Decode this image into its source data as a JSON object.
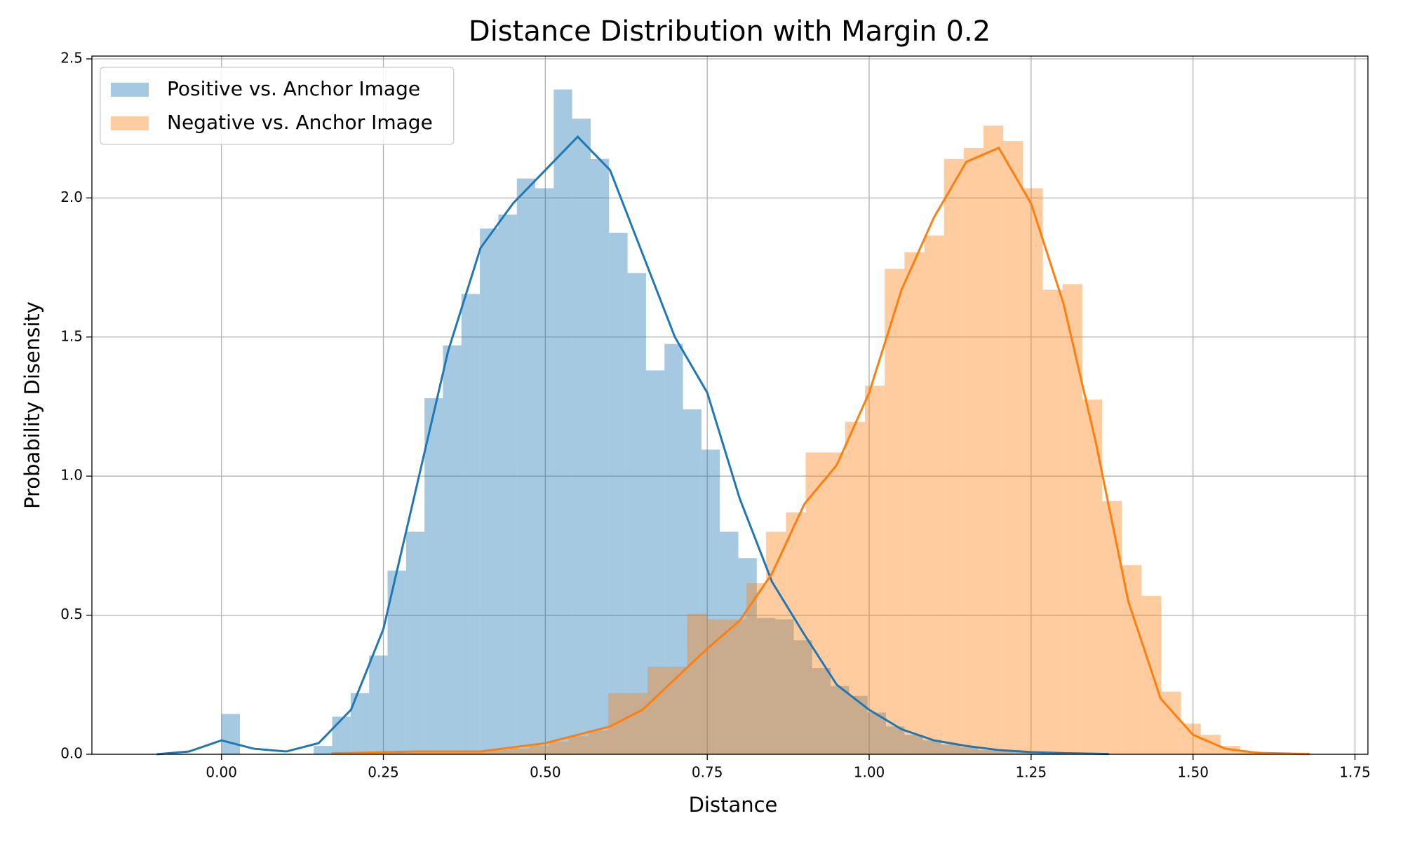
{
  "chart_data": {
    "type": "histogram",
    "title": "Distance Distribution with Margin 0.2",
    "xlabel": "Distance",
    "ylabel": "Probability Disensity",
    "xlim": [
      -0.2,
      1.77
    ],
    "ylim": [
      0,
      2.51
    ],
    "xticks": [
      {
        "value": 0,
        "label": "0.00"
      },
      {
        "value": 0.25,
        "label": "0.25"
      },
      {
        "value": 0.5,
        "label": "0.50"
      },
      {
        "value": 0.75,
        "label": "0.75"
      },
      {
        "value": 1,
        "label": "1.00"
      },
      {
        "value": 1.25,
        "label": "1.25"
      },
      {
        "value": 1.5,
        "label": "1.50"
      },
      {
        "value": 1.75,
        "label": "1.75"
      }
    ],
    "yticks": [
      {
        "value": 0,
        "label": "0.0"
      },
      0.5,
      {
        "value": 1,
        "label": "1.0"
      },
      1.5,
      {
        "value": 2,
        "label": "2.0"
      },
      2.5
    ],
    "grid": true,
    "legend": "upper left",
    "series": [
      {
        "name": "Positive vs. Anchor Image",
        "color": "#1f77b4",
        "bins": [
          0,
          0.0285,
          0.057,
          0.0855,
          0.114,
          0.1425,
          0.171,
          0.1995,
          0.228,
          0.2565,
          0.285,
          0.3135,
          0.342,
          0.3705,
          0.399,
          0.4275,
          0.456,
          0.4845,
          0.513,
          0.5415,
          0.57,
          0.5985,
          0.627,
          0.6555,
          0.684,
          0.7125,
          0.741,
          0.7695,
          0.798,
          0.8265,
          0.855,
          0.8835,
          0.912,
          0.9405,
          0.969,
          0.9975,
          1.026,
          1.0545,
          1.083,
          1.1115,
          1.14,
          1.1685,
          1.197,
          1.2255,
          1.254,
          1.2825,
          1.311,
          1.3395,
          1.368
        ],
        "values": [
          0.145,
          0,
          0,
          0,
          0,
          0.03,
          0.135,
          0.22,
          0.355,
          0.66,
          0.8,
          1.28,
          1.47,
          1.655,
          1.89,
          1.94,
          2.07,
          2.035,
          2.39,
          2.285,
          2.14,
          1.875,
          1.73,
          1.38,
          1.475,
          1.24,
          1.095,
          0.8,
          0.705,
          0.49,
          0.485,
          0.41,
          0.31,
          0.245,
          0.21,
          0.15,
          0.1,
          0.07,
          0.05,
          0.035,
          0.025,
          0.015,
          0.01,
          0.008,
          0.005,
          0.003,
          0.002,
          0.002
        ],
        "kde_x": [
          -0.1,
          -0.05,
          0,
          0.05,
          0.1,
          0.15,
          0.2,
          0.25,
          0.3,
          0.35,
          0.4,
          0.45,
          0.5,
          0.55,
          0.6,
          0.65,
          0.7,
          0.75,
          0.8,
          0.85,
          0.9,
          0.95,
          1.0,
          1.05,
          1.1,
          1.15,
          1.2,
          1.25,
          1.3,
          1.37
        ],
        "kde_y": [
          0.0,
          0.01,
          0.05,
          0.02,
          0.01,
          0.04,
          0.16,
          0.45,
          0.95,
          1.45,
          1.82,
          1.98,
          2.1,
          2.22,
          2.1,
          1.8,
          1.5,
          1.3,
          0.92,
          0.62,
          0.43,
          0.25,
          0.16,
          0.09,
          0.05,
          0.03,
          0.015,
          0.008,
          0.004,
          0.001
        ]
      },
      {
        "name": "Negative vs. Anchor Image",
        "color": "#ff7f0e",
        "bins": [
          0.17,
          0.2005,
          0.231,
          0.2615,
          0.292,
          0.3225,
          0.353,
          0.3835,
          0.414,
          0.4445,
          0.475,
          0.5055,
          0.536,
          0.5665,
          0.597,
          0.6275,
          0.658,
          0.6885,
          0.719,
          0.7495,
          0.78,
          0.8105,
          0.841,
          0.8715,
          0.902,
          0.9325,
          0.963,
          0.9935,
          1.024,
          1.0545,
          1.085,
          1.1155,
          1.146,
          1.1765,
          1.207,
          1.2375,
          1.268,
          1.2985,
          1.329,
          1.3595,
          1.39,
          1.4205,
          1.451,
          1.4815,
          1.512,
          1.5425,
          1.573,
          1.6035,
          1.634
        ],
        "values": [
          0.002,
          0.003,
          0.004,
          0.005,
          0.006,
          0.008,
          0.01,
          0.012,
          0.015,
          0.02,
          0.03,
          0.045,
          0.065,
          0.085,
          0.22,
          0.22,
          0.315,
          0.315,
          0.505,
          0.485,
          0.485,
          0.615,
          0.8,
          0.87,
          1.085,
          1.085,
          1.195,
          1.325,
          1.745,
          1.805,
          1.865,
          2.14,
          2.18,
          2.26,
          2.205,
          2.035,
          1.67,
          1.69,
          1.275,
          0.91,
          0.68,
          0.57,
          0.225,
          0.11,
          0.07,
          0.03,
          0.01,
          0.005
        ],
        "kde_x": [
          0.17,
          0.3,
          0.4,
          0.5,
          0.6,
          0.65,
          0.7,
          0.75,
          0.8,
          0.85,
          0.9,
          0.95,
          1.0,
          1.05,
          1.1,
          1.15,
          1.2,
          1.25,
          1.3,
          1.35,
          1.4,
          1.45,
          1.5,
          1.55,
          1.6,
          1.68
        ],
        "kde_y": [
          0.003,
          0.01,
          0.01,
          0.04,
          0.1,
          0.16,
          0.27,
          0.38,
          0.48,
          0.65,
          0.9,
          1.04,
          1.3,
          1.67,
          1.93,
          2.13,
          2.18,
          1.98,
          1.62,
          1.12,
          0.55,
          0.2,
          0.07,
          0.02,
          0.005,
          0.001
        ]
      }
    ]
  }
}
